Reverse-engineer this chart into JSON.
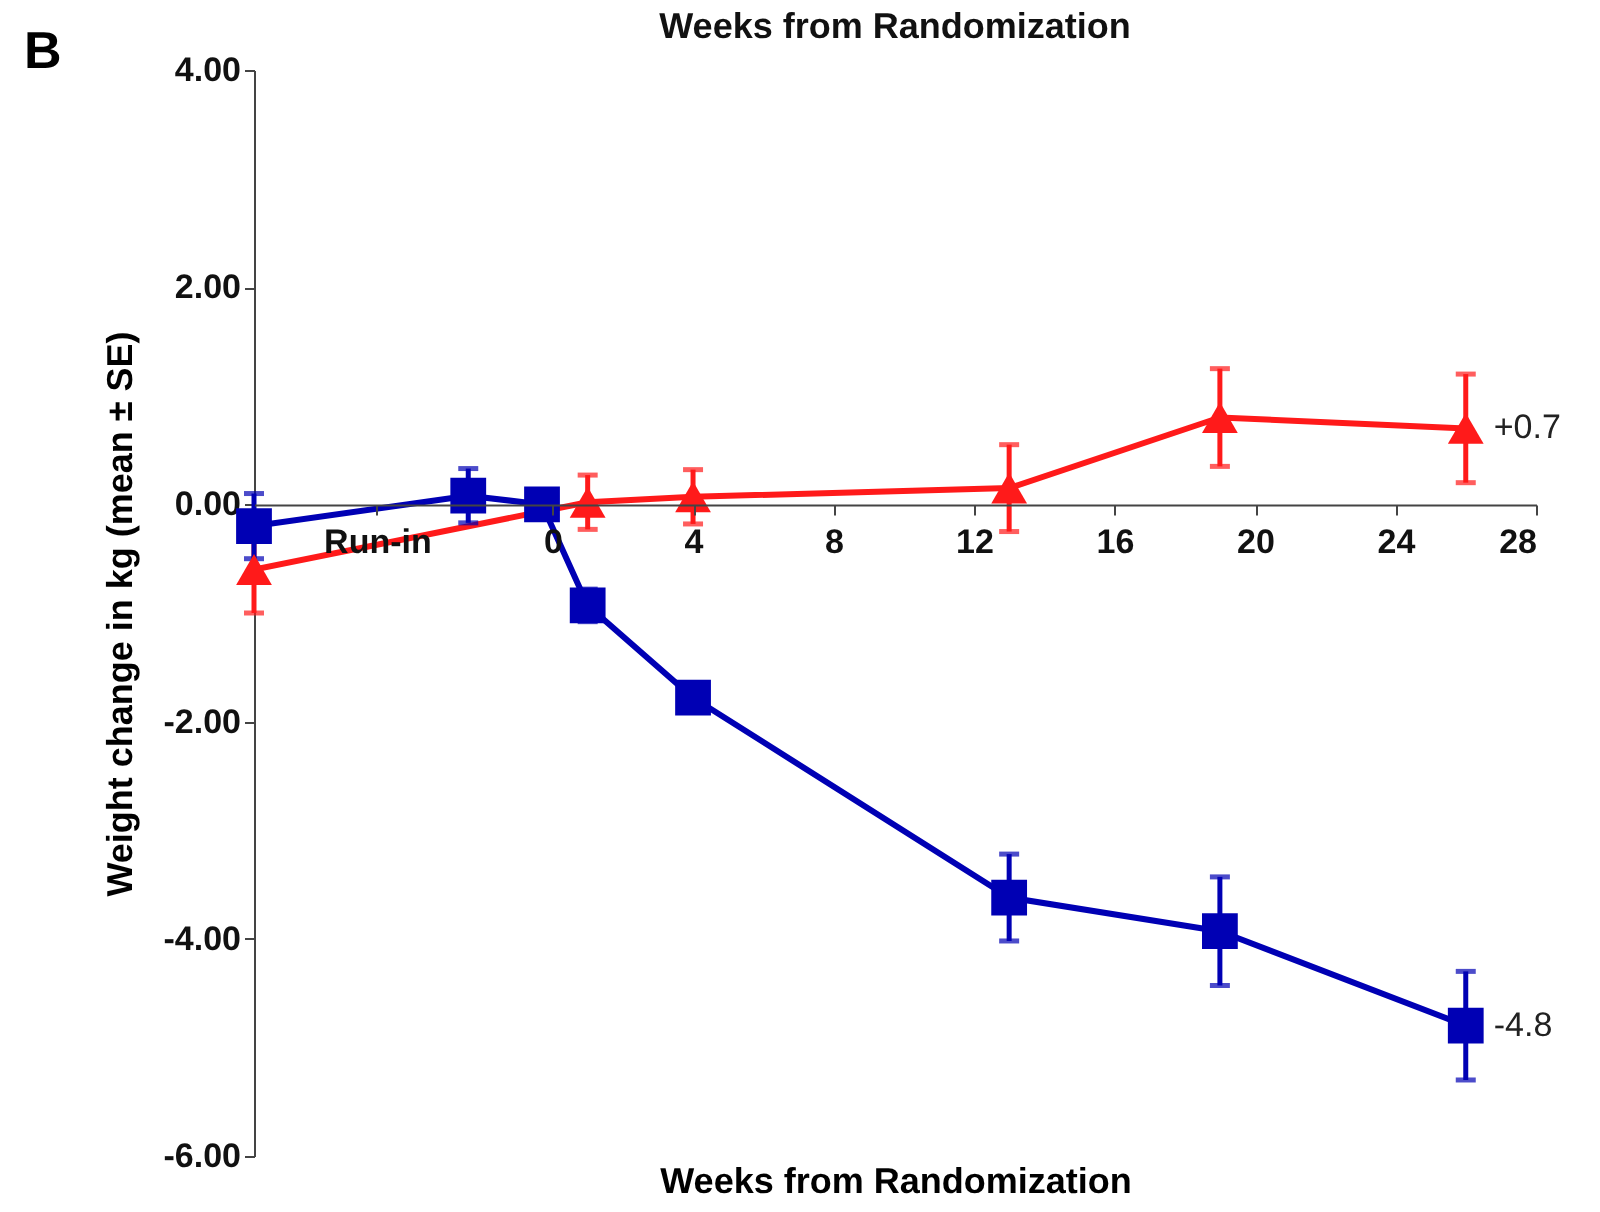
{
  "chart_data": {
    "type": "line",
    "title": "Weeks from Randomization",
    "xlabel": "Weeks from Randomization",
    "ylabel": "Weight change in kg (mean ± SE)",
    "annotations": [
      "B",
      {
        "text": "+0.7",
        "x": 26,
        "y": 0.7
      },
      {
        "text": "-4.8",
        "x": 26,
        "y": -4.8
      }
    ],
    "xlim": [
      -8.5,
      28
    ],
    "xticks": [
      {
        "value": -5,
        "label": "Run-in"
      },
      0,
      4,
      8,
      12,
      16,
      20,
      24,
      28
    ],
    "ylim": [
      -6,
      4
    ],
    "yticks": [
      {
        "value": -6,
        "label": "-6.00"
      },
      {
        "value": -4,
        "label": "-4.00"
      },
      {
        "value": -2,
        "label": "-2.00"
      },
      {
        "value": 0,
        "label": "0.00"
      },
      {
        "value": 2,
        "label": "2.00"
      },
      {
        "value": 4,
        "label": "4.00"
      }
    ],
    "grid": false,
    "legend": false,
    "line_style": "solid",
    "series": [
      {
        "color": "#ff1a1a",
        "marker": "triangle",
        "x": [
          -8.5,
          1,
          4,
          13,
          19,
          26
        ],
        "values": [
          -0.6,
          0.02,
          0.07,
          0.15,
          0.8,
          0.7
        ],
        "errors": [
          0.4,
          0.25,
          0.25,
          0.4,
          0.45,
          0.5
        ]
      },
      {
        "color": "#0000b4",
        "marker": "square",
        "x": [
          -8.5,
          -2.4,
          -0.3,
          1,
          4,
          13,
          19,
          26
        ],
        "values": [
          -0.2,
          0.08,
          0,
          -0.93,
          -1.78,
          -3.62,
          -3.93,
          -4.8
        ],
        "errors": [
          0.3,
          0.25,
          0.1,
          0.15,
          0.1,
          0.4,
          0.5,
          0.5
        ]
      }
    ]
  }
}
